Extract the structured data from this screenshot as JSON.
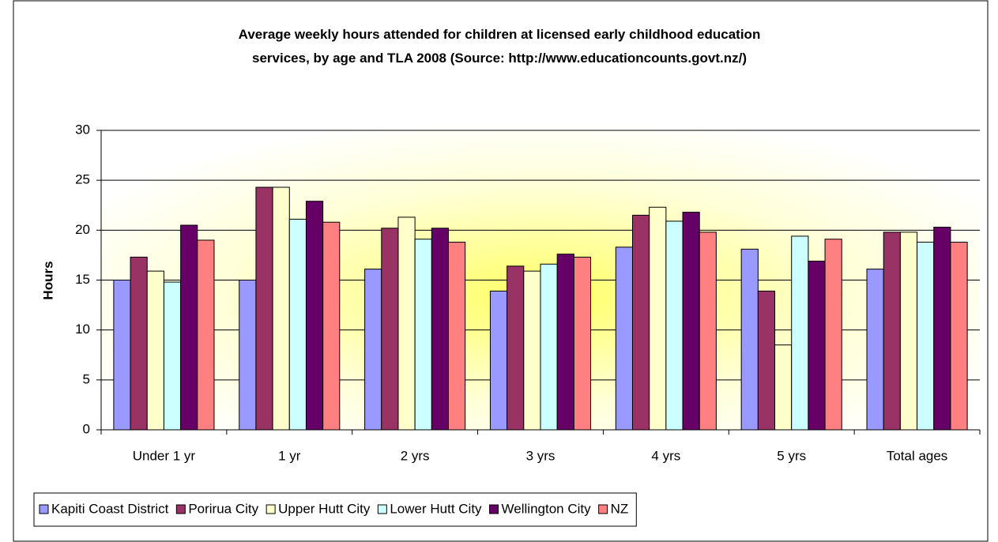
{
  "chart_data": {
    "type": "bar",
    "title": "Average weekly hours attended for children at licensed early childhood education services, by age and TLA 2008 (Source: http://www.educationcounts.govt.nz/)",
    "y_label": "Hours",
    "categories": [
      "Under 1 yr",
      "1 yr",
      "2 yrs",
      "3 yrs",
      "4 yrs",
      "5 yrs",
      "Total ages"
    ],
    "series": [
      {
        "name": "Kapiti Coast District",
        "color": "#9999ff",
        "values": [
          15,
          15,
          16.1,
          13.9,
          18.3,
          18.1,
          16.1
        ]
      },
      {
        "name": "Porirua City",
        "color": "#993366",
        "values": [
          17.3,
          24.3,
          20.2,
          16.4,
          21.5,
          13.9,
          19.8
        ]
      },
      {
        "name": "Upper Hutt City",
        "color": "#ffffcc",
        "values": [
          15.9,
          24.3,
          21.3,
          15.9,
          22.3,
          8.5,
          19.8
        ]
      },
      {
        "name": "Lower Hutt City",
        "color": "#ccffff",
        "values": [
          14.8,
          21.1,
          19.1,
          16.6,
          20.9,
          19.4,
          18.8
        ]
      },
      {
        "name": "Wellington City",
        "color": "#660066",
        "values": [
          20.5,
          22.9,
          20.2,
          17.6,
          21.8,
          16.9,
          20.3
        ]
      },
      {
        "name": "NZ",
        "color": "#ff8080",
        "values": [
          19,
          20.8,
          18.8,
          17.3,
          19.8,
          19.1,
          18.8
        ]
      }
    ],
    "ylim": [
      0,
      30
    ],
    "yticks": [
      0,
      5,
      10,
      15,
      20,
      25,
      30
    ],
    "grid": true,
    "legend": "bottom"
  }
}
